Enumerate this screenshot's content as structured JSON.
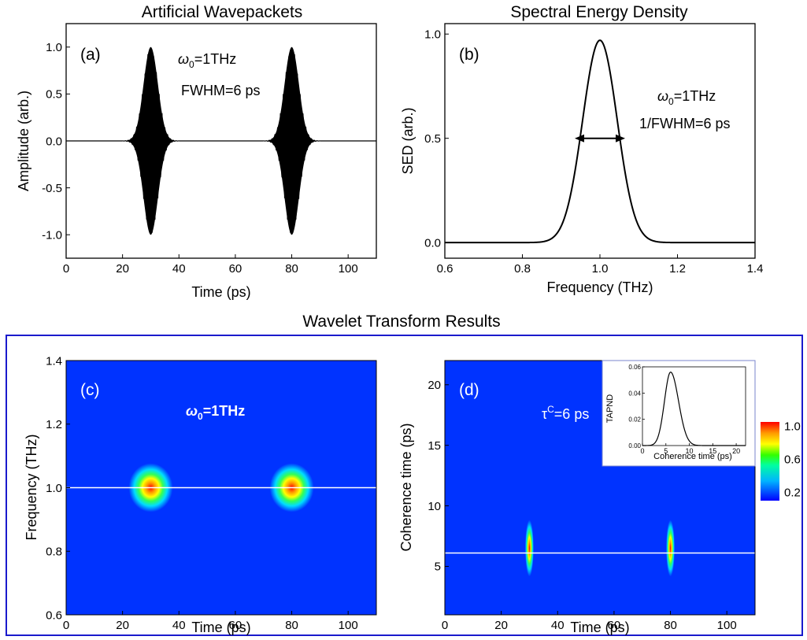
{
  "titles": {
    "top_left": "Artificial Wavepackets",
    "top_right": "Spectral Energy Density",
    "bottom": "Wavelet Transform Results"
  },
  "colors": {
    "frame": "#1a1acc",
    "heat_bg": "#0033ff",
    "line": "#000000",
    "ridge": "#ffffff"
  },
  "chart_data": [
    {
      "id": "a",
      "type": "line",
      "panel_label": "(a)",
      "xlabel": "Time (ps)",
      "ylabel": "Amplitude (arb.)",
      "xlim": [
        0,
        110
      ],
      "ylim": [
        -1.25,
        1.25
      ],
      "xticks": [
        0,
        20,
        40,
        60,
        80,
        100
      ],
      "xtick_labels": [
        "0",
        "20",
        "40",
        "60",
        "80",
        "100"
      ],
      "yticks": [
        -1.0,
        -0.5,
        0.0,
        0.5,
        1.0
      ],
      "ytick_labels": [
        "-1.0",
        "-0.5",
        "0.0",
        "0.5",
        "1.0"
      ],
      "packet_centers": [
        30,
        80
      ],
      "peak_amplitude": 1.0,
      "annotation_omega_symbol": "ω",
      "annotation_omega_sub": "0",
      "annotation_omega_value": "=1THz",
      "annotation_fwhm": "FWHM=6 ps"
    },
    {
      "id": "b",
      "type": "line",
      "panel_label": "(b)",
      "xlabel": "Frequency (THz)",
      "ylabel": "SED (arb.)",
      "xlim": [
        0.6,
        1.4
      ],
      "ylim": [
        -0.075,
        1.05
      ],
      "xticks": [
        0.6,
        0.8,
        1.0,
        1.2,
        1.4
      ],
      "xtick_labels": [
        "0.6",
        "0.8",
        "1.0",
        "1.2",
        "1.4"
      ],
      "yticks": [
        0.0,
        0.5,
        1.0
      ],
      "ytick_labels": [
        "0.0",
        "0.5",
        "1.0"
      ],
      "peak_x": 1.0,
      "peak_y": 0.97,
      "arrow_y": 0.5,
      "arrow_x": [
        0.935,
        1.065
      ],
      "annotation_omega_symbol": "ω",
      "annotation_omega_sub": "0",
      "annotation_omega_value": "=1THz",
      "annotation_fwhm": "1/FWHM=6 ps"
    },
    {
      "id": "c",
      "type": "heatmap",
      "panel_label": "(c)",
      "xlabel": "Time (ps)",
      "ylabel": "Frequency (THz)",
      "xlim": [
        0,
        110
      ],
      "ylim": [
        0.6,
        1.4
      ],
      "xticks": [
        0,
        20,
        40,
        60,
        80,
        100
      ],
      "xtick_labels": [
        "0",
        "20",
        "40",
        "60",
        "80",
        "100"
      ],
      "yticks": [
        0.6,
        0.8,
        1.0,
        1.2,
        1.4
      ],
      "ytick_labels": [
        "0.6",
        "0.8",
        "1.0",
        "1.2",
        "1.4"
      ],
      "spots": [
        {
          "x": 30,
          "y": 1.0
        },
        {
          "x": 80,
          "y": 1.0
        }
      ],
      "ridge_y": 1.0,
      "annotation_omega_symbol": "ω",
      "annotation_omega_sub": "0",
      "annotation_omega_value": "=1THz"
    },
    {
      "id": "d",
      "type": "heatmap",
      "panel_label": "(d)",
      "xlabel": "Time (ps)",
      "ylabel": "Coherence time (ps)",
      "xlim": [
        0,
        110
      ],
      "ylim": [
        1,
        22
      ],
      "xticks": [
        0,
        20,
        40,
        60,
        80,
        100
      ],
      "xtick_labels": [
        "0",
        "20",
        "40",
        "60",
        "80",
        "100"
      ],
      "yticks": [
        5,
        10,
        15,
        20
      ],
      "ytick_labels": [
        "5",
        "10",
        "15",
        "20"
      ],
      "spots": [
        {
          "x": 30,
          "y": 6.5
        },
        {
          "x": 80,
          "y": 6.5
        }
      ],
      "ridge_y": 6.1,
      "annotation_tau": "τ",
      "annotation_tau_sup": "C",
      "annotation_tau_value": "=6 ps",
      "colorbar": {
        "ticks": [
          0.2,
          0.6,
          1.0
        ],
        "tick_labels": [
          "0.2",
          "0.6",
          "1.0"
        ],
        "range": [
          0.1,
          1.05
        ]
      },
      "inset": {
        "type": "line",
        "xlabel": "Coherence time (ps)",
        "ylabel": "TAPND",
        "xlim": [
          0,
          22
        ],
        "ylim": [
          0,
          0.06
        ],
        "xticks": [
          0,
          5,
          10,
          15,
          20
        ],
        "xtick_labels": [
          "0",
          "5",
          "10",
          "15",
          "20"
        ],
        "yticks": [
          0.0,
          0.02,
          0.04,
          0.06
        ],
        "ytick_labels": [
          "0.00",
          "0.02",
          "0.04",
          "0.06"
        ],
        "peak_x": 6,
        "peak_y": 0.056
      }
    }
  ]
}
